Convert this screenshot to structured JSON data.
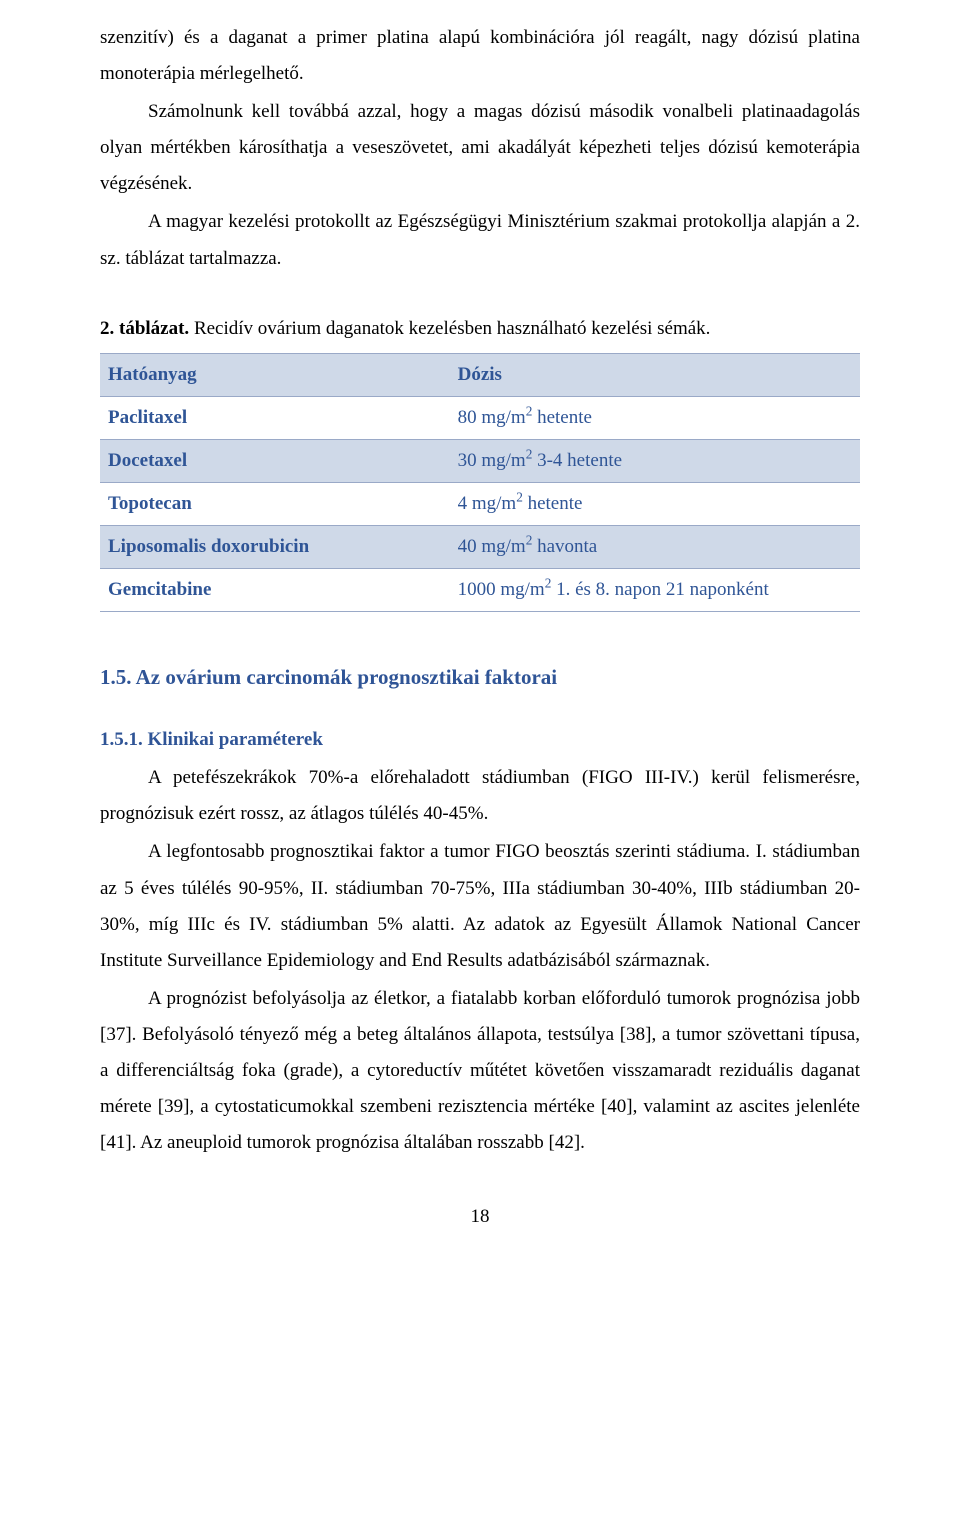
{
  "top": {
    "p1": "szenzitív) és a daganat a primer platina alapú kombinációra jól reagált, nagy dózisú platina monoterápia mérlegelhető.",
    "p2": "Számolnunk kell továbbá azzal, hogy a magas dózisú második vonalbeli platinaadagolás olyan mértékben károsíthatja a veseszövetet, ami akadályát képezheti teljes dózisú kemoterápia végzésének.",
    "p3": "A magyar kezelési protokollt az Egészségügyi Minisztérium szakmai protokollja alapján a 2. sz. táblázat tartalmazza."
  },
  "tablecap_prefix": "2. táblázat.",
  "tablecap_rest": " Recidív ovárium daganatok kezelésben használható kezelési sémák.",
  "table": {
    "header_color": "#cfd9e8",
    "border_color": "#9aa9c7",
    "text_color": "#2f5596",
    "columns": [
      "Hatóanyag",
      "Dózis"
    ],
    "rows": [
      {
        "agent": "Paclitaxel",
        "dose_pre": "80 mg/m",
        "dose_sup": "2",
        "dose_post": " hetente"
      },
      {
        "agent": "Docetaxel",
        "dose_pre": "30 mg/m",
        "dose_sup": "2",
        "dose_post": " 3-4 hetente"
      },
      {
        "agent": "Topotecan",
        "dose_pre": "4 mg/m",
        "dose_sup": "2",
        "dose_post": " hetente"
      },
      {
        "agent": "Liposomalis doxorubicin",
        "dose_pre": "40 mg/m",
        "dose_sup": "2",
        "dose_post": " havonta"
      },
      {
        "agent": "Gemcitabine",
        "dose_pre": "1000 mg/m",
        "dose_sup": "2",
        "dose_post": " 1. és 8. napon 21 naponként"
      }
    ]
  },
  "sec": {
    "h2": "1.5. Az ovárium carcinomák prognosztikai faktorai",
    "h3": "1.5.1. Klinikai paraméterek",
    "p1": "A petefészekrákok 70%-a előrehaladott stádiumban (FIGO III-IV.) kerül felismerésre, prognózisuk ezért rossz, az átlagos túlélés 40-45%.",
    "p2": "A legfontosabb prognosztikai faktor a tumor FIGO beosztás szerinti stádiuma. I. stádiumban az 5 éves túlélés 90-95%, II. stádiumban 70-75%, IIIa stádiumban 30-40%, IIIb stádiumban 20-30%, míg IIIc és IV. stádiumban 5% alatti. Az adatok az Egyesült Államok National Cancer Institute Surveillance Epidemiology and End Results adatbázisából származnak.",
    "p3": "A prognózist befolyásolja az életkor, a fiatalabb korban előforduló tumorok prognózisa jobb [37]. Befolyásoló tényező még a beteg általános állapota, testsúlya [38], a tumor szövettani típusa, a differenciáltság foka (grade), a cytoreductív műtétet követően visszamaradt reziduális daganat mérete [39], a cytostaticumokkal szembeni rezisztencia mértéke [40], valamint az ascites jelenléte [41]. Az aneuploid tumorok prognózisa általában rosszabb [42]."
  },
  "page_number": "18"
}
